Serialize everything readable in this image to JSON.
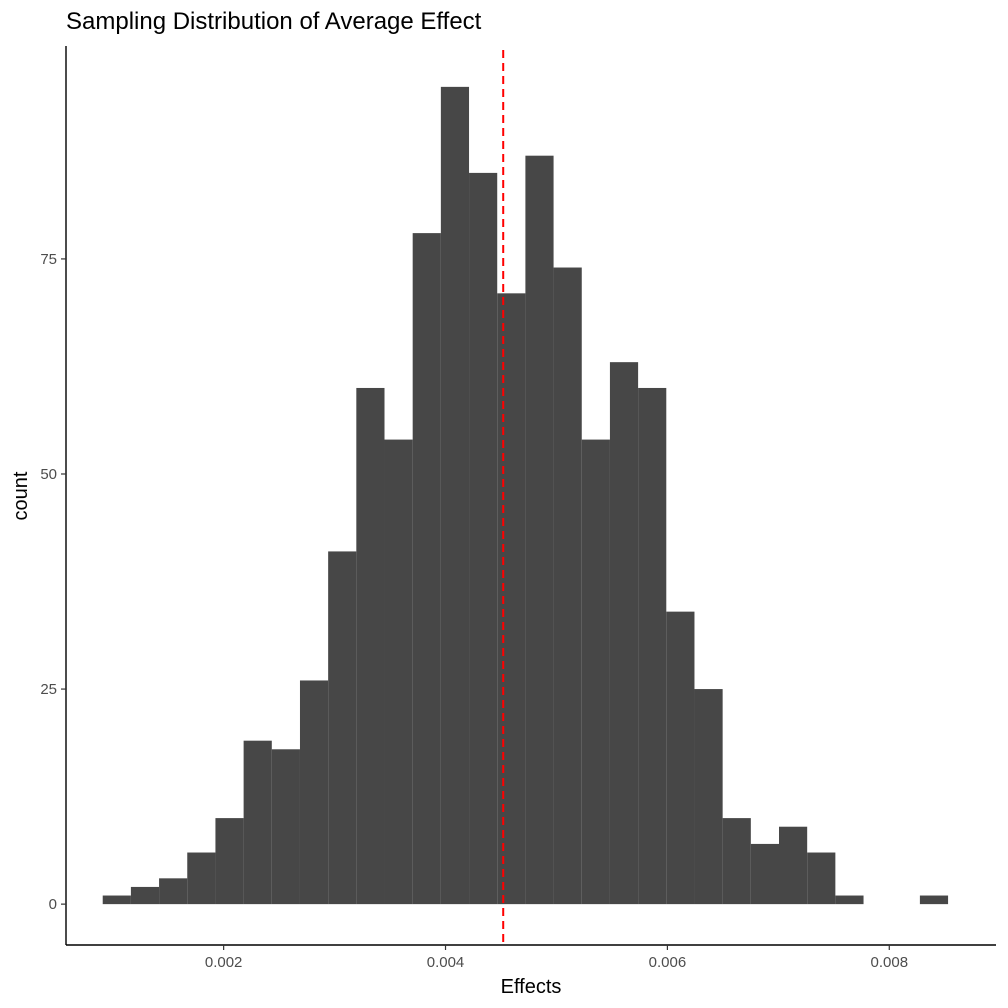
{
  "chart_data": {
    "type": "bar",
    "title": "Sampling Distribution of Average Effect",
    "xlabel": "Effects",
    "ylabel": "count",
    "bin_width": 0.000254,
    "bins": [
      {
        "x": 0.001037,
        "count": 1
      },
      {
        "x": 0.001291,
        "count": 2
      },
      {
        "x": 0.001545,
        "count": 3
      },
      {
        "x": 0.001799,
        "count": 6
      },
      {
        "x": 0.002053,
        "count": 10
      },
      {
        "x": 0.002307,
        "count": 19
      },
      {
        "x": 0.002561,
        "count": 18
      },
      {
        "x": 0.002815,
        "count": 26
      },
      {
        "x": 0.003069,
        "count": 41
      },
      {
        "x": 0.003323,
        "count": 60
      },
      {
        "x": 0.003577,
        "count": 54
      },
      {
        "x": 0.003831,
        "count": 78
      },
      {
        "x": 0.004085,
        "count": 95
      },
      {
        "x": 0.004339,
        "count": 85
      },
      {
        "x": 0.004593,
        "count": 71
      },
      {
        "x": 0.004847,
        "count": 87
      },
      {
        "x": 0.005101,
        "count": 74
      },
      {
        "x": 0.005355,
        "count": 54
      },
      {
        "x": 0.005609,
        "count": 63
      },
      {
        "x": 0.005863,
        "count": 60
      },
      {
        "x": 0.006117,
        "count": 34
      },
      {
        "x": 0.006371,
        "count": 25
      },
      {
        "x": 0.006625,
        "count": 10
      },
      {
        "x": 0.006879,
        "count": 7
      },
      {
        "x": 0.007133,
        "count": 9
      },
      {
        "x": 0.007387,
        "count": 6
      },
      {
        "x": 0.007641,
        "count": 1
      },
      {
        "x": 0.007895,
        "count": 0
      },
      {
        "x": 0.008149,
        "count": 0
      },
      {
        "x": 0.008403,
        "count": 1
      }
    ],
    "xlim": [
      0.000579,
      0.008962
    ],
    "ylim": [
      -4.75,
      99.75
    ],
    "x_ticks": [
      {
        "value": 0.002,
        "label": "0.002"
      },
      {
        "value": 0.004,
        "label": "0.004"
      },
      {
        "value": 0.006,
        "label": "0.006"
      },
      {
        "value": 0.008,
        "label": "0.008"
      }
    ],
    "y_ticks": [
      {
        "value": 0,
        "label": "0"
      },
      {
        "value": 25,
        "label": "25"
      },
      {
        "value": 50,
        "label": "50"
      },
      {
        "value": 75,
        "label": "75"
      }
    ],
    "vline": {
      "x": 0.00452,
      "color": "#ff0000",
      "style": "dashed"
    },
    "bar_color": "#474747",
    "grid": false
  }
}
